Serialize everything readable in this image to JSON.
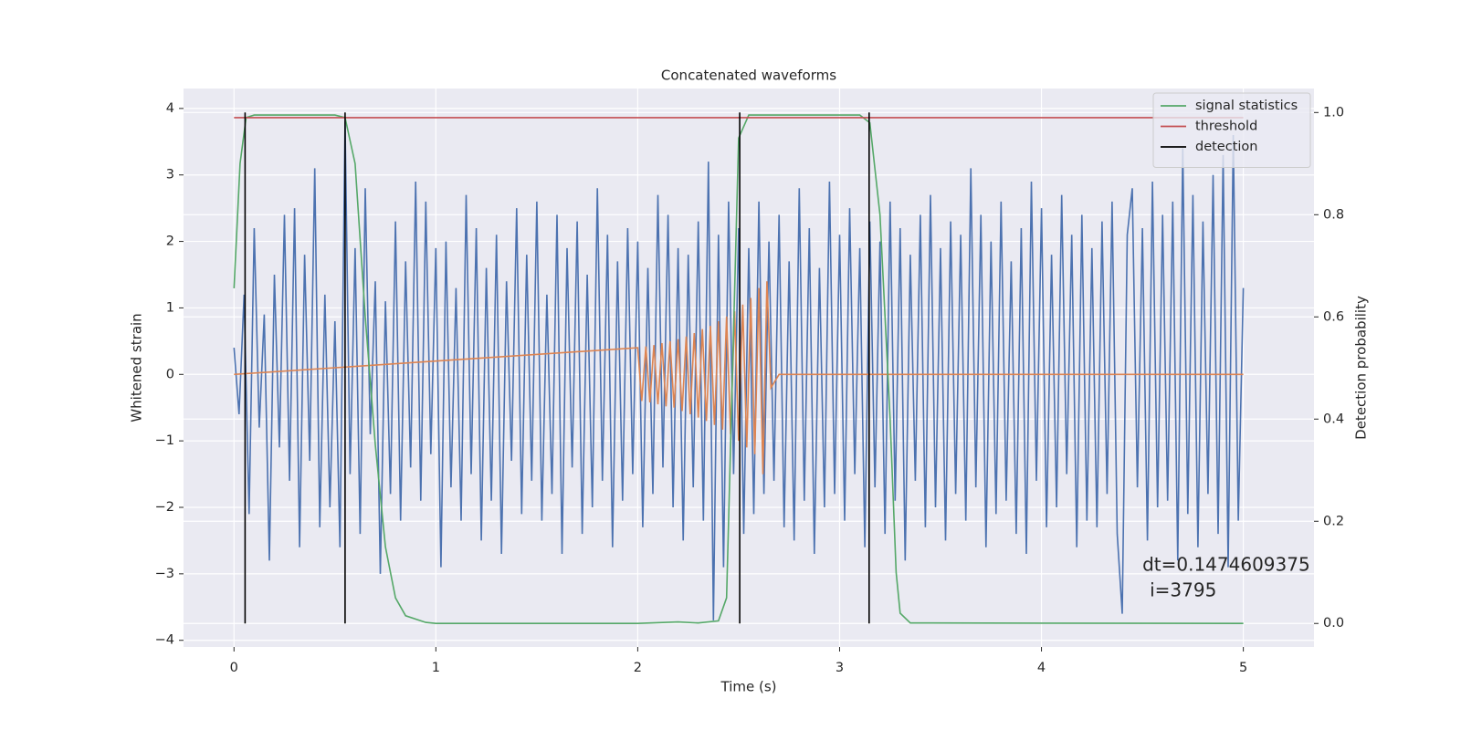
{
  "chart_data": {
    "type": "line",
    "title": "Concatenated waveforms",
    "xlabel": "Time (s)",
    "ylabel": "Whitened strain",
    "y2label": "Detection probability",
    "xlim": [
      -0.25,
      5.35
    ],
    "ylim": [
      -4.1,
      4.3
    ],
    "y2lim": [
      -0.046,
      1.047
    ],
    "xticks": [
      0,
      1,
      2,
      3,
      4,
      5
    ],
    "yticks": [
      {
        "value": -4,
        "label": "−4"
      },
      {
        "value": -3,
        "label": "−3"
      },
      {
        "value": -2,
        "label": "−2"
      },
      {
        "value": -1,
        "label": "−1"
      },
      0,
      1,
      2,
      3,
      4
    ],
    "y2ticks": [
      {
        "value": 0,
        "label": "0.0"
      },
      0.2,
      0.4,
      0.6,
      0.8,
      {
        "value": 1,
        "label": "1.0"
      }
    ],
    "grid": true,
    "legend": "upper right",
    "annotations": [
      "dt=0.1474609375",
      "i=3795"
    ],
    "series": [
      {
        "color": "#4c72b0",
        "x": [
          0,
          0.025,
          0.05,
          0.075,
          0.1,
          0.125,
          0.15,
          0.175,
          0.2,
          0.225,
          0.25,
          0.275,
          0.3,
          0.325,
          0.35,
          0.375,
          0.4,
          0.425,
          0.45,
          0.475,
          0.5,
          0.525,
          0.55,
          0.575,
          0.6,
          0.625,
          0.65,
          0.675,
          0.7,
          0.725,
          0.75,
          0.775,
          0.8,
          0.825,
          0.85,
          0.875,
          0.9,
          0.925,
          0.95,
          0.975,
          1,
          1.025,
          1.05,
          1.075,
          1.1,
          1.125,
          1.15,
          1.175,
          1.2,
          1.225,
          1.25,
          1.275,
          1.3,
          1.325,
          1.35,
          1.375,
          1.4,
          1.425,
          1.45,
          1.475,
          1.5,
          1.525,
          1.55,
          1.575,
          1.6,
          1.625,
          1.65,
          1.675,
          1.7,
          1.725,
          1.75,
          1.775,
          1.8,
          1.825,
          1.85,
          1.875,
          1.9,
          1.925,
          1.95,
          1.975,
          2,
          2.025,
          2.05,
          2.075,
          2.1,
          2.125,
          2.15,
          2.175,
          2.2,
          2.225,
          2.25,
          2.275,
          2.3,
          2.325,
          2.35,
          2.375,
          2.4,
          2.425,
          2.45,
          2.475,
          2.5,
          2.525,
          2.55,
          2.575,
          2.6,
          2.625,
          2.65,
          2.675,
          2.7,
          2.725,
          2.75,
          2.775,
          2.8,
          2.825,
          2.85,
          2.875,
          2.9,
          2.925,
          2.95,
          2.975,
          3,
          3.025,
          3.05,
          3.075,
          3.1,
          3.125,
          3.15,
          3.175,
          3.2,
          3.225,
          3.25,
          3.275,
          3.3,
          3.325,
          3.35,
          3.375,
          3.4,
          3.425,
          3.45,
          3.475,
          3.5,
          3.525,
          3.55,
          3.575,
          3.6,
          3.625,
          3.65,
          3.675,
          3.7,
          3.725,
          3.75,
          3.775,
          3.8,
          3.825,
          3.85,
          3.875,
          3.9,
          3.925,
          3.95,
          3.975,
          4,
          4.025,
          4.05,
          4.075,
          4.1,
          4.125,
          4.15,
          4.175,
          4.2,
          4.225,
          4.25,
          4.275,
          4.3,
          4.325,
          4.35,
          4.375,
          4.4,
          4.425,
          4.45,
          4.475,
          4.5,
          4.525,
          4.55,
          4.575,
          4.6,
          4.625,
          4.65,
          4.675,
          4.7,
          4.725,
          4.75,
          4.775,
          4.8,
          4.825,
          4.85,
          4.875,
          4.9,
          4.925,
          4.95,
          4.975,
          5
        ],
        "values": [
          0.4,
          -0.6,
          1.2,
          -2.1,
          2.2,
          -0.8,
          0.9,
          -2.8,
          1.5,
          -1.1,
          2.4,
          -1.6,
          2.5,
          -2.6,
          1.8,
          -1.3,
          3.1,
          -2.3,
          1.2,
          -2.0,
          0.8,
          -2.6,
          3.8,
          -1.5,
          1.9,
          -2.4,
          2.8,
          -0.9,
          1.4,
          -3.0,
          1.1,
          -1.8,
          2.3,
          -2.2,
          1.7,
          -1.4,
          2.9,
          -1.9,
          2.6,
          -1.2,
          1.9,
          -2.9,
          2.0,
          -1.7,
          1.3,
          -2.2,
          2.7,
          -1.5,
          2.2,
          -2.5,
          1.6,
          -1.9,
          2.1,
          -2.7,
          1.4,
          -1.3,
          2.5,
          -2.1,
          1.8,
          -1.6,
          2.6,
          -2.2,
          1.2,
          -1.8,
          2.4,
          -2.7,
          1.9,
          -1.4,
          2.3,
          -2.4,
          1.5,
          -2.0,
          2.8,
          -1.6,
          2.1,
          -2.6,
          1.7,
          -1.9,
          2.2,
          -1.5,
          2.0,
          -2.3,
          1.6,
          -1.8,
          2.7,
          -1.4,
          2.4,
          -2.0,
          1.9,
          -2.5,
          1.8,
          -1.7,
          2.3,
          -2.2,
          3.2,
          -3.7,
          2.1,
          -2.9,
          2.6,
          -1.5,
          2.2,
          -2.4,
          1.9,
          -2.1,
          2.6,
          -1.8,
          2.0,
          -1.6,
          2.4,
          -2.3,
          1.7,
          -2.5,
          2.8,
          -1.9,
          2.2,
          -2.7,
          1.6,
          -2.0,
          2.9,
          -1.8,
          2.1,
          -2.2,
          2.5,
          -1.5,
          1.9,
          -2.6,
          2.3,
          -1.7,
          2.0,
          -2.4,
          2.6,
          -1.9,
          2.2,
          -2.8,
          1.8,
          -1.6,
          2.4,
          -2.3,
          2.7,
          -2.0,
          1.9,
          -2.5,
          2.3,
          -1.8,
          2.1,
          -2.2,
          3.1,
          -1.7,
          2.4,
          -2.6,
          2.0,
          -2.1,
          2.6,
          -1.9,
          1.7,
          -2.4,
          2.2,
          -2.7,
          2.9,
          -1.6,
          2.5,
          -2.3,
          1.8,
          -2.0,
          2.7,
          -1.5,
          2.1,
          -2.6,
          2.4,
          -2.2,
          1.9,
          -2.3,
          2.3,
          -1.8,
          2.6,
          -2.4,
          -3.6,
          2.1,
          2.8,
          -1.7,
          2.2,
          -2.5,
          2.9,
          -2.0,
          2.4,
          -1.9,
          2.6,
          -2.8,
          3.4,
          -2.1,
          2.7,
          -2.6,
          2.3,
          -1.8,
          3.0,
          -2.4,
          3.3,
          -2.9,
          3.6,
          -2.2,
          1.3
        ]
      },
      {
        "color": "#dd8452",
        "x": [
          0,
          2.0,
          2.02,
          2.04,
          2.06,
          2.08,
          2.1,
          2.12,
          2.14,
          2.16,
          2.18,
          2.2,
          2.22,
          2.24,
          2.26,
          2.28,
          2.3,
          2.32,
          2.34,
          2.36,
          2.38,
          2.4,
          2.42,
          2.44,
          2.46,
          2.48,
          2.5,
          2.52,
          2.54,
          2.56,
          2.58,
          2.6,
          2.62,
          2.64,
          2.66,
          2.7,
          5
        ],
        "values": [
          0,
          0.4,
          -0.4,
          0.42,
          -0.42,
          0.44,
          -0.45,
          0.47,
          -0.48,
          0.5,
          -0.5,
          0.53,
          -0.55,
          0.57,
          -0.6,
          0.62,
          -0.65,
          0.68,
          -0.7,
          0.73,
          -0.76,
          0.8,
          -0.83,
          0.87,
          -0.9,
          0.95,
          -1.0,
          1.05,
          -1.1,
          1.15,
          -1.2,
          1.3,
          -1.5,
          1.4,
          -0.2,
          0,
          0
        ]
      },
      {
        "name": "signal statistics",
        "color": "#55a868",
        "axis": "y2",
        "x": [
          0,
          0.03,
          0.06,
          0.1,
          0.5,
          0.55,
          0.6,
          0.65,
          0.7,
          0.75,
          0.8,
          0.85,
          0.95,
          1.0,
          2.0,
          2.2,
          2.3,
          2.4,
          2.44,
          2.47,
          2.5,
          2.55,
          3.1,
          3.15,
          3.2,
          3.25,
          3.28,
          3.3,
          3.35,
          5.0
        ],
        "values": [
          0.656,
          0.9,
          0.99,
          0.995,
          0.995,
          0.99,
          0.9,
          0.6,
          0.35,
          0.15,
          0.05,
          0.015,
          0.002,
          0,
          0,
          0.003,
          0.001,
          0.005,
          0.05,
          0.5,
          0.95,
          0.995,
          0.995,
          0.98,
          0.8,
          0.4,
          0.1,
          0.02,
          0.001,
          0
        ]
      },
      {
        "name": "threshold",
        "color": "#c44e52",
        "axis": "y2",
        "x": [
          0,
          5
        ],
        "values": [
          0.99,
          0.99
        ]
      },
      {
        "name": "detection",
        "color": "#000000",
        "axis": "y2",
        "x": [
          0.055,
          0.055,
          null,
          0.55,
          0.55,
          null,
          2.505,
          2.505,
          null,
          3.146,
          3.146
        ],
        "values": [
          0,
          1,
          null,
          0,
          1,
          null,
          0,
          1,
          null,
          0,
          1
        ]
      }
    ]
  }
}
